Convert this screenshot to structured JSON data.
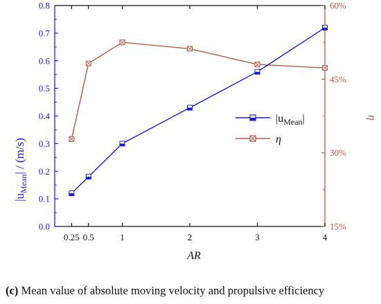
{
  "chart_data": {
    "type": "line",
    "x": [
      0.25,
      0.5,
      1,
      2,
      3,
      4
    ],
    "x_ticks": [
      "0.25",
      "0.5",
      "1",
      "2",
      "3",
      "4"
    ],
    "xlabel": "AR",
    "xlim": [
      0,
      4.0
    ],
    "ylabel_left": {
      "prefix": "|u",
      "sub": "Mean",
      "suffix": "| / (m/s)"
    },
    "ylim_left": [
      0.0,
      0.8
    ],
    "y_ticks_left": [
      "0.0",
      "0.1",
      "0.2",
      "0.3",
      "0.4",
      "0.5",
      "0.6",
      "0.7",
      "0.8"
    ],
    "ylabel_right": "η",
    "ylim_right": [
      15,
      60
    ],
    "y_ticks_right": [
      "15%",
      "30%",
      "45%",
      "60%"
    ],
    "series": [
      {
        "name": "|u_Mean|",
        "axis": "left",
        "color": "#1a1adf",
        "marker": "half-filled-square",
        "values": [
          0.12,
          0.18,
          0.3,
          0.43,
          0.56,
          0.72
        ]
      },
      {
        "name": "η",
        "axis": "right",
        "color": "#b45a4a",
        "marker": "crossed-square",
        "values": [
          32.8,
          48.2,
          52.5,
          51.2,
          48.0,
          47.3
        ]
      }
    ],
    "legend": {
      "placement": "center-right",
      "entries": [
        {
          "prefix": "|u",
          "sub": "Mean",
          "suffix": "|"
        },
        {
          "text": "η"
        }
      ]
    },
    "grid": false
  },
  "caption": {
    "label": "(c)",
    "text": " Mean value of absolute moving velocity and propulsive efficiency"
  }
}
